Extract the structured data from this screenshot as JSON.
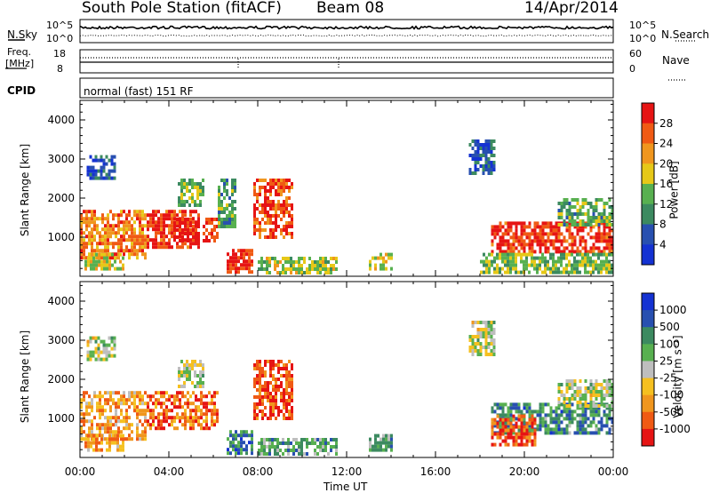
{
  "header": {
    "station": "South Pole Station (fitACF)",
    "beam": "Beam 08",
    "date": "14/Apr/2014"
  },
  "top_panels": {
    "nsky_label": "N.Sky",
    "nsky_ticks": [
      "10^5",
      "10^0"
    ],
    "nsearch_label": "N.Search",
    "nsearch_ticks": [
      "10^5",
      "10^0"
    ],
    "freq_label_line1": "Freq.",
    "freq_label_line2": "[MHz]",
    "freq_ticks": [
      "18",
      "8"
    ],
    "nave_label": "Nave",
    "nave_ticks": [
      "60",
      "0"
    ],
    "cpid_label": "CPID",
    "cpid_value": "normal (fast) 151 RF"
  },
  "colors": {
    "power_scale": [
      "#1432d2",
      "#2850b0",
      "#3c8a60",
      "#58b050",
      "#e6c818",
      "#f0961e",
      "#f05a14",
      "#e61414"
    ],
    "velocity_scale": [
      "#e61414",
      "#f05a14",
      "#f0961e",
      "#f5c020",
      "#bebebe",
      "#58b050",
      "#3c8a60",
      "#2850b0",
      "#1432d2"
    ]
  },
  "chart_data": [
    {
      "type": "heatmap",
      "name": "power",
      "ylabel": "Slant Range [km]",
      "xlabel": "",
      "yticks": [
        "1000",
        "2000",
        "3000",
        "4000"
      ],
      "ylim": [
        0,
        4500
      ],
      "xlim": [
        "00:00",
        "24:00"
      ],
      "colorbar": {
        "label": "Power [dB]",
        "ticks": [
          "28",
          "24",
          "20",
          "16",
          "12",
          "8",
          "4"
        ],
        "range": [
          0,
          32
        ]
      },
      "regions": [
        {
          "t0": 0.0,
          "t1": 3.0,
          "r0": 500,
          "r1": 1700,
          "level": 0.75
        },
        {
          "t0": 0.2,
          "t1": 2.0,
          "r0": 150,
          "r1": 600,
          "level": 0.55
        },
        {
          "t0": 0.3,
          "t1": 1.6,
          "r0": 2500,
          "r1": 3100,
          "level": 0.15
        },
        {
          "t0": 3.0,
          "t1": 5.3,
          "r0": 700,
          "r1": 1700,
          "level": 0.9
        },
        {
          "t0": 4.2,
          "t1": 6.2,
          "r0": 900,
          "r1": 1500,
          "level": 0.95
        },
        {
          "t0": 4.4,
          "t1": 5.5,
          "r0": 1800,
          "r1": 2500,
          "level": 0.45
        },
        {
          "t0": 6.2,
          "t1": 7.0,
          "r0": 1300,
          "r1": 2500,
          "level": 0.35
        },
        {
          "t0": 6.6,
          "t1": 7.8,
          "r0": 100,
          "r1": 700,
          "level": 0.95
        },
        {
          "t0": 7.8,
          "t1": 9.6,
          "r0": 1000,
          "r1": 2500,
          "level": 0.85
        },
        {
          "t0": 8.0,
          "t1": 11.5,
          "r0": 100,
          "r1": 500,
          "level": 0.5
        },
        {
          "t0": 13.0,
          "t1": 14.0,
          "r0": 200,
          "r1": 600,
          "level": 0.55
        },
        {
          "t0": 17.5,
          "t1": 18.7,
          "r0": 2600,
          "r1": 3500,
          "level": 0.2
        },
        {
          "t0": 18.5,
          "t1": 24.0,
          "r0": 600,
          "r1": 1400,
          "level": 0.9
        },
        {
          "t0": 21.5,
          "t1": 24.0,
          "r0": 1300,
          "r1": 2000,
          "level": 0.4
        },
        {
          "t0": 18.0,
          "t1": 24.0,
          "r0": 100,
          "r1": 600,
          "level": 0.45
        }
      ]
    },
    {
      "type": "heatmap",
      "name": "velocity",
      "ylabel": "Slant Range [km]",
      "xlabel": "Time UT",
      "yticks": [
        "1000",
        "2000",
        "3000",
        "4000"
      ],
      "ylim": [
        0,
        4500
      ],
      "xticks": [
        "00:00",
        "04:00",
        "08:00",
        "12:00",
        "16:00",
        "20:00",
        "00:00"
      ],
      "xlim": [
        "00:00",
        "24:00"
      ],
      "colorbar": {
        "label": "Velocity  [m s⁻¹]",
        "ticks": [
          "1000",
          "500",
          "100",
          "25",
          "-25",
          "-100",
          "-500",
          "-1000"
        ],
        "range": [
          -1000,
          1000
        ]
      },
      "regions": [
        {
          "t0": 0.0,
          "t1": 3.0,
          "r0": 500,
          "r1": 1700,
          "level": 0.3
        },
        {
          "t0": 0.2,
          "t1": 2.0,
          "r0": 150,
          "r1": 600,
          "level": 0.3
        },
        {
          "t0": 0.3,
          "t1": 1.6,
          "r0": 2500,
          "r1": 3100,
          "level": 0.5
        },
        {
          "t0": 3.0,
          "t1": 6.2,
          "r0": 700,
          "r1": 1700,
          "level": 0.2
        },
        {
          "t0": 4.4,
          "t1": 5.5,
          "r0": 1800,
          "r1": 2500,
          "level": 0.5
        },
        {
          "t0": 6.6,
          "t1": 7.8,
          "r0": 100,
          "r1": 700,
          "level": 0.75
        },
        {
          "t0": 7.8,
          "t1": 9.6,
          "r0": 1000,
          "r1": 2500,
          "level": 0.15
        },
        {
          "t0": 8.0,
          "t1": 11.5,
          "r0": 100,
          "r1": 500,
          "level": 0.65
        },
        {
          "t0": 13.0,
          "t1": 14.0,
          "r0": 200,
          "r1": 600,
          "level": 0.65
        },
        {
          "t0": 17.5,
          "t1": 18.7,
          "r0": 2600,
          "r1": 3500,
          "level": 0.5
        },
        {
          "t0": 18.5,
          "t1": 24.0,
          "r0": 600,
          "r1": 1400,
          "level": 0.72
        },
        {
          "t0": 21.5,
          "t1": 24.0,
          "r0": 1300,
          "r1": 2000,
          "level": 0.5
        },
        {
          "t0": 18.5,
          "t1": 20.5,
          "r0": 300,
          "r1": 1100,
          "level": 0.15
        }
      ]
    }
  ]
}
